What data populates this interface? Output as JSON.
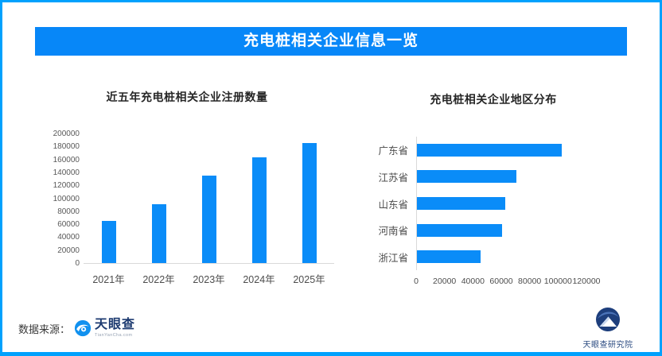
{
  "page": {
    "border_color": "#00a1fd",
    "background_color": "#ffffff"
  },
  "header": {
    "title": "充电桩相关企业信息一览",
    "bg_color": "#0787f8",
    "text_color": "#ffffff"
  },
  "chart_data": [
    {
      "type": "bar",
      "title": "近五年充电桩相关企业注册数量",
      "categories": [
        "2021年",
        "2022年",
        "2023年",
        "2024年",
        "2025年"
      ],
      "values": [
        65000,
        91000,
        135000,
        163000,
        185000
      ],
      "xlabel": "",
      "ylabel": "",
      "ylim": [
        0,
        200000
      ],
      "y_ticks": [
        0,
        20000,
        40000,
        60000,
        80000,
        100000,
        120000,
        140000,
        160000,
        180000,
        200000
      ],
      "bar_color": "#0a8cf8",
      "grid": false,
      "legend": null
    },
    {
      "type": "bar",
      "orientation": "horizontal",
      "title": "充电桩相关企业地区分布",
      "categories": [
        "广东省",
        "江苏省",
        "山东省",
        "河南省",
        "浙江省"
      ],
      "values": [
        102000,
        70000,
        62000,
        60000,
        45000
      ],
      "xlabel": "",
      "ylabel": "",
      "xlim": [
        0,
        120000
      ],
      "x_ticks": [
        0,
        20000,
        40000,
        60000,
        80000,
        100000,
        120000
      ],
      "bar_color": "#0a8cf8",
      "grid": false,
      "legend": null
    }
  ],
  "footer": {
    "source_label": "数据来源：",
    "source_logo_text": "天眼查",
    "source_logo_sub": "TianYanCha.com",
    "institute_label": "天眼查研究院"
  }
}
